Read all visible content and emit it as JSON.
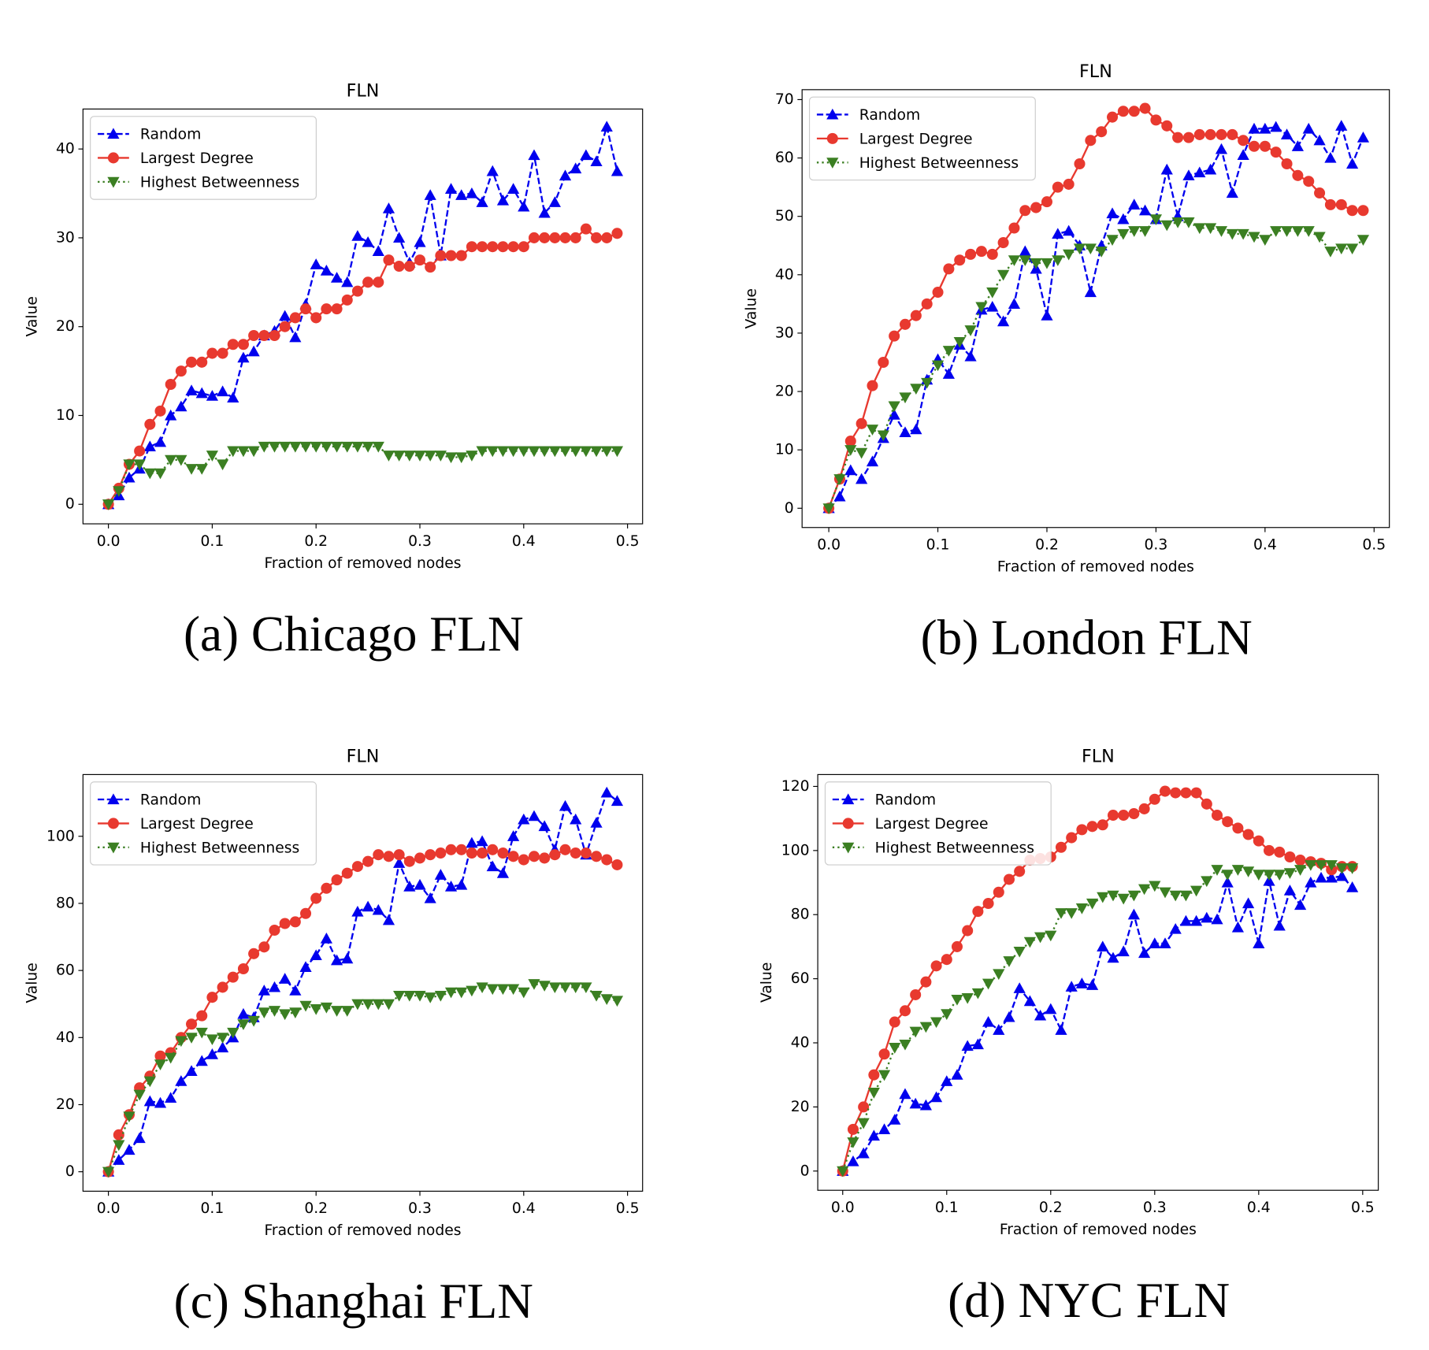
{
  "chart_data": [
    {
      "type": "line",
      "title": "FLN",
      "caption": "(a) Chicago FLN",
      "xlabel": "Fraction of removed nodes",
      "ylabel": "Value",
      "legend": "upper left",
      "x": [
        0,
        0.01,
        0.02,
        0.03,
        0.04,
        0.05,
        0.06,
        0.07,
        0.08,
        0.09,
        0.1,
        0.11,
        0.12,
        0.13,
        0.14,
        0.15,
        0.16,
        0.17,
        0.18,
        0.19,
        0.2,
        0.21,
        0.22,
        0.23,
        0.24,
        0.25,
        0.26,
        0.27,
        0.28,
        0.29,
        0.3,
        0.31,
        0.32,
        0.33,
        0.34,
        0.35,
        0.36,
        0.37,
        0.38,
        0.39,
        0.4,
        0.41,
        0.42,
        0.43,
        0.44,
        0.45,
        0.46,
        0.47,
        0.48,
        0.49
      ],
      "xlim": [
        -0.0245,
        0.5145
      ],
      "xticks": [
        {
          "value": 0,
          "label": "0.0"
        },
        0.1,
        0.2,
        0.3,
        0.4,
        0.5
      ],
      "ylim": [
        -2.2,
        44.5
      ],
      "yticks": [
        0,
        10,
        20,
        30,
        40
      ],
      "series": [
        {
          "name": "Random",
          "color": "#0000ee",
          "marker": "^",
          "linestyle": "--",
          "values": [
            0,
            1,
            3,
            4,
            6.5,
            7,
            10,
            11,
            12.8,
            12.5,
            12.2,
            12.7,
            12,
            16.5,
            17.2,
            19,
            19.5,
            21.2,
            18.8,
            22.5,
            27,
            26.3,
            25.5,
            25,
            30.2,
            29.5,
            28.5,
            33.3,
            30,
            27.2,
            29.5,
            34.8,
            28,
            35.5,
            34.8,
            35,
            34,
            37.5,
            34.2,
            35.5,
            33.5,
            39.3,
            32.8,
            34,
            37,
            37.8,
            39.3,
            38.6,
            42.5,
            37.5
          ]
        },
        {
          "name": "Largest Degree",
          "color": "#e8392f",
          "marker": "o",
          "linestyle": "-",
          "values": [
            0,
            1.8,
            4.5,
            6,
            9,
            10.5,
            13.5,
            15,
            16,
            16,
            17,
            17,
            18,
            18,
            19,
            19,
            19,
            20,
            21,
            22,
            21,
            22,
            22,
            23,
            24,
            25,
            25,
            27.5,
            26.8,
            26.8,
            27.5,
            26.7,
            28,
            28,
            28,
            29,
            29,
            29,
            29,
            29,
            29,
            30,
            30,
            30,
            30,
            30,
            31,
            30,
            30,
            30.5
          ]
        },
        {
          "name": "Highest Betweenness",
          "color": "#3b7f22",
          "marker": "v",
          "linestyle": ":",
          "values": [
            0,
            1.5,
            4.5,
            4.5,
            3.5,
            3.5,
            5,
            5,
            4,
            4,
            5.5,
            4.5,
            6,
            6,
            6,
            6.5,
            6.5,
            6.5,
            6.5,
            6.5,
            6.5,
            6.5,
            6.5,
            6.5,
            6.5,
            6.5,
            6.5,
            5.5,
            5.5,
            5.5,
            5.5,
            5.5,
            5.5,
            5.3,
            5.3,
            5.5,
            6,
            6,
            6,
            6,
            6,
            6,
            6,
            6,
            6,
            6,
            6,
            6,
            6,
            6
          ]
        }
      ]
    },
    {
      "type": "line",
      "title": "FLN",
      "caption": "(b) London FLN",
      "xlabel": "Fraction of removed nodes",
      "ylabel": "Value",
      "legend": "upper left",
      "x": [
        0,
        0.01,
        0.02,
        0.03,
        0.04,
        0.05,
        0.06,
        0.07,
        0.08,
        0.09,
        0.1,
        0.11,
        0.12,
        0.13,
        0.14,
        0.15,
        0.16,
        0.17,
        0.18,
        0.19,
        0.2,
        0.21,
        0.22,
        0.23,
        0.24,
        0.25,
        0.26,
        0.27,
        0.28,
        0.29,
        0.3,
        0.31,
        0.32,
        0.33,
        0.34,
        0.35,
        0.36,
        0.37,
        0.38,
        0.39,
        0.4,
        0.41,
        0.42,
        0.43,
        0.44,
        0.45,
        0.46,
        0.47,
        0.48,
        0.49
      ],
      "xlim": [
        -0.0245,
        0.514
      ],
      "xticks": [
        {
          "value": 0,
          "label": "0.0"
        },
        0.1,
        0.2,
        0.3,
        0.4,
        0.5
      ],
      "ylim": [
        -3.3,
        71.7
      ],
      "yticks": [
        0,
        10,
        20,
        30,
        40,
        50,
        60,
        70
      ],
      "series": [
        {
          "name": "Random",
          "color": "#0000ee",
          "marker": "^",
          "linestyle": "--",
          "values": [
            0,
            2,
            6.5,
            5,
            8,
            12,
            16,
            13,
            13.5,
            22,
            25.5,
            23,
            28,
            26,
            34,
            34.5,
            32,
            35,
            44,
            41,
            33,
            47,
            47.5,
            45,
            37,
            45,
            50.5,
            49.5,
            52,
            51,
            49.5,
            58,
            50,
            57,
            57.5,
            58,
            61.5,
            54,
            60.5,
            65,
            65,
            65.3,
            64,
            62,
            65,
            63,
            60,
            65.5,
            59,
            63.5
          ]
        },
        {
          "name": "Largest Degree",
          "color": "#e8392f",
          "marker": "o",
          "linestyle": "-",
          "values": [
            0,
            5,
            11.5,
            14.5,
            21,
            25,
            29.5,
            31.5,
            33,
            35,
            37,
            41,
            42.5,
            43.5,
            44,
            43.5,
            45.5,
            48,
            51,
            51.5,
            52.5,
            55,
            55.5,
            59,
            63,
            64.5,
            67,
            68,
            68,
            68.5,
            66.5,
            65.5,
            63.5,
            63.5,
            64,
            64,
            64,
            64,
            63,
            62,
            62,
            61,
            59,
            57,
            56,
            54,
            52,
            52,
            51,
            51
          ]
        },
        {
          "name": "Highest Betweenness",
          "color": "#3b7f22",
          "marker": "v",
          "linestyle": ":",
          "values": [
            0,
            5,
            10,
            9.5,
            13.5,
            12.5,
            17.5,
            19,
            20.5,
            21.5,
            24.5,
            27,
            28.5,
            30.5,
            34.5,
            37,
            40,
            42.5,
            42.5,
            42,
            42,
            42.5,
            43.5,
            44.5,
            44.5,
            44,
            46,
            47,
            47.5,
            47.5,
            49.5,
            48.5,
            49,
            49,
            48,
            48,
            47.5,
            47,
            47,
            46.5,
            46,
            47.5,
            47.5,
            47.5,
            47.5,
            46.5,
            44,
            44.5,
            44.5,
            46
          ]
        }
      ]
    },
    {
      "type": "line",
      "title": "FLN",
      "caption": "(c) Shanghai FLN",
      "xlabel": "Fraction of removed nodes",
      "ylabel": "Value",
      "legend": "upper left",
      "x": [
        0,
        0.01,
        0.02,
        0.03,
        0.04,
        0.05,
        0.06,
        0.07,
        0.08,
        0.09,
        0.1,
        0.11,
        0.12,
        0.13,
        0.14,
        0.15,
        0.16,
        0.17,
        0.18,
        0.19,
        0.2,
        0.21,
        0.22,
        0.23,
        0.24,
        0.25,
        0.26,
        0.27,
        0.28,
        0.29,
        0.3,
        0.31,
        0.32,
        0.33,
        0.34,
        0.35,
        0.36,
        0.37,
        0.38,
        0.39,
        0.4,
        0.41,
        0.42,
        0.43,
        0.44,
        0.45,
        0.46,
        0.47,
        0.48,
        0.49
      ],
      "xlim": [
        -0.0245,
        0.5145
      ],
      "xticks": [
        {
          "value": 0,
          "label": "0.0"
        },
        0.1,
        0.2,
        0.3,
        0.4,
        0.5
      ],
      "ylim": [
        -5.8,
        118.4
      ],
      "yticks": [
        0,
        20,
        40,
        60,
        80,
        100
      ],
      "series": [
        {
          "name": "Random",
          "color": "#0000ee",
          "marker": "^",
          "linestyle": "--",
          "values": [
            0,
            3.5,
            6.5,
            10,
            21,
            20.5,
            22,
            27,
            30,
            33,
            35,
            37,
            40,
            47,
            46,
            54,
            55,
            57.5,
            54,
            61,
            64.5,
            69.5,
            63,
            63.5,
            77.5,
            79,
            78,
            75,
            92,
            85,
            85.5,
            81.5,
            88.5,
            85,
            85.5,
            98,
            98.5,
            91,
            89,
            100,
            105,
            106,
            103,
            96,
            109,
            105,
            94.5,
            104,
            113,
            110.5
          ]
        },
        {
          "name": "Largest Degree",
          "color": "#e8392f",
          "marker": "o",
          "linestyle": "-",
          "values": [
            0,
            11,
            17,
            25,
            28.5,
            34.5,
            35.5,
            40,
            44,
            46.5,
            52,
            55,
            58,
            60.5,
            65,
            67,
            72,
            74,
            74.5,
            77,
            81.5,
            84.5,
            87,
            89,
            91,
            92.5,
            94.5,
            94,
            94.5,
            92.5,
            93.5,
            94.5,
            95,
            96,
            96,
            95,
            95,
            96,
            95,
            94,
            93,
            94,
            93.5,
            94.5,
            96,
            95,
            95,
            94,
            93,
            91.5
          ]
        },
        {
          "name": "Highest Betweenness",
          "color": "#3b7f22",
          "marker": "v",
          "linestyle": ":",
          "values": [
            0,
            8,
            16.5,
            23,
            27,
            32,
            34,
            39,
            40,
            41.5,
            39.5,
            40,
            41.5,
            44,
            45,
            47.5,
            48,
            47,
            47.5,
            49.5,
            48.5,
            49,
            48,
            48,
            50,
            50,
            50,
            50,
            52.5,
            52.5,
            52.5,
            52,
            52.5,
            53.5,
            53.5,
            54,
            55,
            54.5,
            54.5,
            54.5,
            53.5,
            56,
            55.5,
            55,
            55,
            55,
            55,
            52.5,
            51.5,
            51
          ]
        }
      ]
    },
    {
      "type": "line",
      "title": "FLN",
      "caption": "(d) NYC FLN",
      "xlabel": "Fraction of removed nodes",
      "ylabel": "Value",
      "legend": "upper left",
      "x": [
        0,
        0.01,
        0.02,
        0.03,
        0.04,
        0.05,
        0.06,
        0.07,
        0.08,
        0.09,
        0.1,
        0.11,
        0.12,
        0.13,
        0.14,
        0.15,
        0.16,
        0.17,
        0.18,
        0.19,
        0.2,
        0.21,
        0.22,
        0.23,
        0.24,
        0.25,
        0.26,
        0.27,
        0.28,
        0.29,
        0.3,
        0.31,
        0.32,
        0.33,
        0.34,
        0.35,
        0.36,
        0.37,
        0.38,
        0.39,
        0.4,
        0.41,
        0.42,
        0.43,
        0.44,
        0.45,
        0.46,
        0.47,
        0.48,
        0.49
      ],
      "xlim": [
        -0.024,
        0.515
      ],
      "xticks": [
        {
          "value": 0,
          "label": "0.0"
        },
        0.1,
        0.2,
        0.3,
        0.4,
        0.5
      ],
      "ylim": [
        -6,
        123.7
      ],
      "yticks": [
        0,
        20,
        40,
        60,
        80,
        100,
        120
      ],
      "series": [
        {
          "name": "Random",
          "color": "#0000ee",
          "marker": "^",
          "linestyle": "--",
          "values": [
            0,
            3,
            5.5,
            11,
            13,
            16,
            24,
            21,
            20.5,
            23,
            28,
            30,
            39,
            39.5,
            46.5,
            44,
            48,
            57,
            53,
            48.5,
            50.5,
            44,
            57.5,
            58.5,
            58,
            70,
            66.5,
            68.5,
            80,
            68,
            71,
            71,
            75.5,
            78,
            78,
            79,
            78.5,
            90,
            76,
            83.5,
            71,
            90.5,
            76.5,
            87.5,
            83,
            90,
            91.5,
            91.5,
            92,
            88.5
          ]
        },
        {
          "name": "Largest Degree",
          "color": "#e8392f",
          "marker": "o",
          "linestyle": "-",
          "values": [
            0,
            13,
            20,
            30,
            36.5,
            46.5,
            50,
            55,
            59,
            64,
            66,
            70,
            75,
            81,
            83.5,
            87,
            91,
            93.5,
            97,
            97.5,
            98,
            101,
            104,
            106.5,
            107.5,
            108,
            111,
            111,
            111.5,
            113,
            116,
            118.5,
            118,
            118,
            118,
            114.5,
            111,
            109,
            107,
            105,
            103,
            100,
            99.5,
            98,
            97,
            96.5,
            96,
            94,
            95,
            95
          ]
        },
        {
          "name": "Highest Betweenness",
          "color": "#3b7f22",
          "marker": "v",
          "linestyle": ":",
          "values": [
            0,
            9,
            15,
            24.5,
            30,
            38.5,
            39.5,
            43.5,
            45,
            46.5,
            49,
            53.5,
            54,
            55.5,
            58.5,
            61.5,
            65.5,
            68.5,
            71.5,
            73,
            73.5,
            80.5,
            80.5,
            82,
            83.5,
            85.5,
            86,
            85,
            86,
            88,
            89,
            87,
            86,
            86,
            87.5,
            90.5,
            94,
            92.5,
            94,
            93.5,
            92.5,
            92.5,
            92.5,
            93,
            94,
            95.5,
            95.5,
            95.5,
            94.5,
            94.5
          ]
        }
      ]
    }
  ]
}
